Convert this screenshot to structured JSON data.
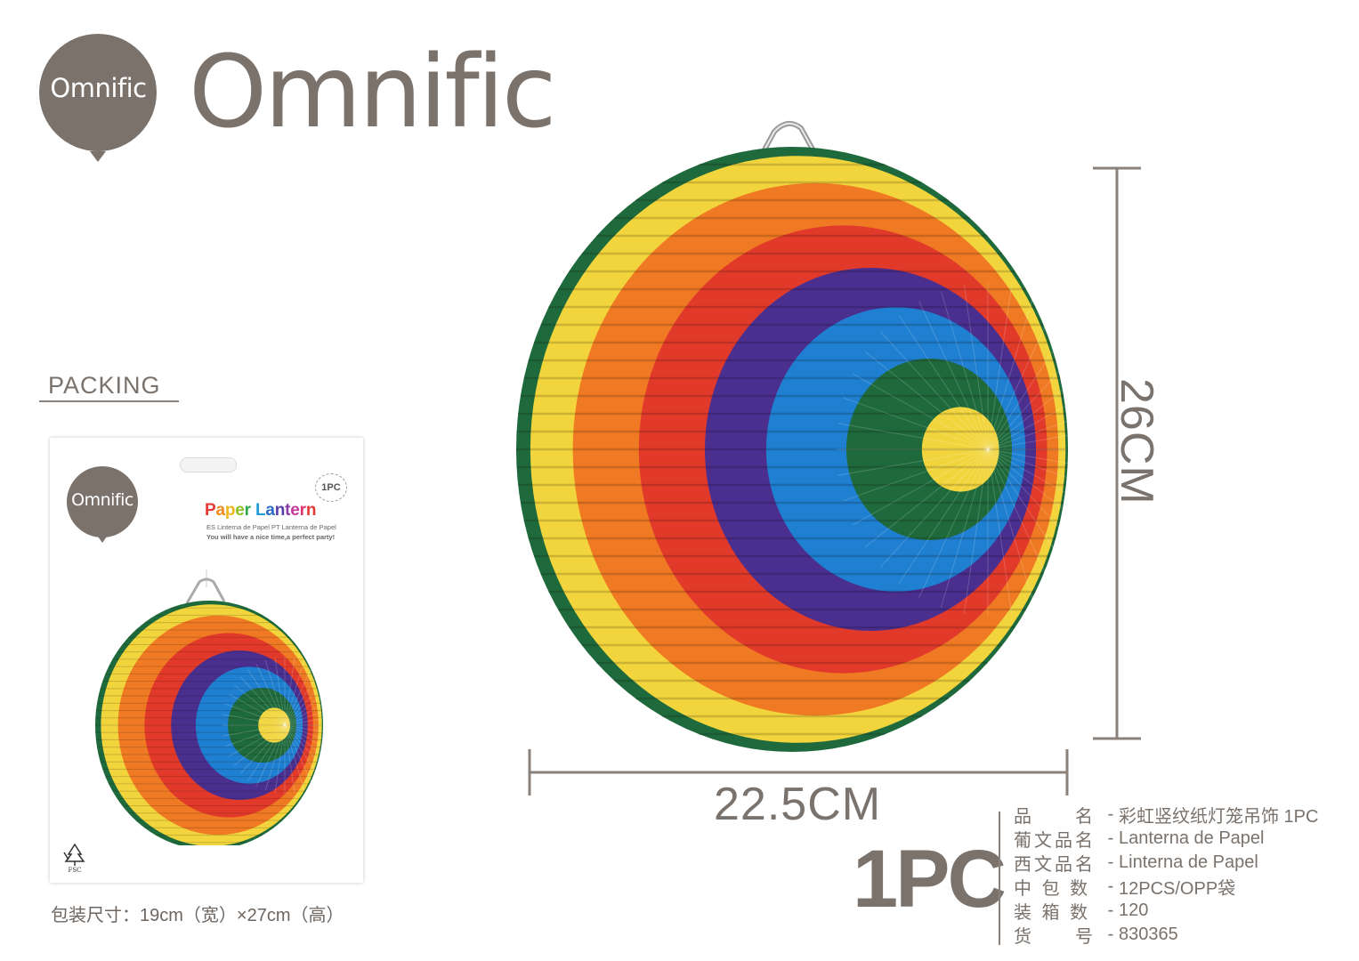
{
  "brand": {
    "badge_text": "Omnific",
    "wordmark": "Omnific",
    "color": "#7b726b"
  },
  "packing": {
    "label": "PACKING",
    "package_size_text": "包装尺寸：19cm（宽）×27cm（高）"
  },
  "package_card": {
    "badge_text": "Omnific",
    "qty_badge": "1PC",
    "title_letters": [
      {
        "ch": "P",
        "color": "#e53935"
      },
      {
        "ch": "a",
        "color": "#f08a1c"
      },
      {
        "ch": "p",
        "color": "#f0b81c"
      },
      {
        "ch": "e",
        "color": "#8cbf2a"
      },
      {
        "ch": "r",
        "color": "#2eaa4a"
      },
      {
        "ch": " ",
        "color": "#ffffff"
      },
      {
        "ch": "L",
        "color": "#1e9dd8"
      },
      {
        "ch": "a",
        "color": "#2a6cc4"
      },
      {
        "ch": "n",
        "color": "#5a3ea8"
      },
      {
        "ch": "t",
        "color": "#8a3ba8"
      },
      {
        "ch": "e",
        "color": "#c4379a"
      },
      {
        "ch": "r",
        "color": "#e0336a"
      },
      {
        "ch": "n",
        "color": "#e53935"
      }
    ],
    "subtitle": "ES Linterna de Papel  PT Lanterna de Papel",
    "tagline": "You will have a nice time,a perfect party!",
    "fsc_icon": "fsc-tree-icon"
  },
  "dimensions": {
    "height": "26CM",
    "width": "22.5CM"
  },
  "quantity": "1PC",
  "specs": [
    {
      "label": "品　　名",
      "value": "彩虹竖纹纸灯笼吊饰 1PC"
    },
    {
      "label": "葡文品名",
      "value": "Lanterna de Papel"
    },
    {
      "label": "西文品名",
      "value": "Linterna de Papel"
    },
    {
      "label": "中 包 数",
      "value": "12PCS/OPP袋"
    },
    {
      "label": "装 箱 数",
      "value": "120"
    },
    {
      "label": "货　　号",
      "value": "830365"
    }
  ],
  "lantern_colors": [
    "#f2d53c",
    "#f07a24",
    "#e23a2a",
    "#4a2f8f",
    "#1f7fd0",
    "#1f6a3c"
  ]
}
